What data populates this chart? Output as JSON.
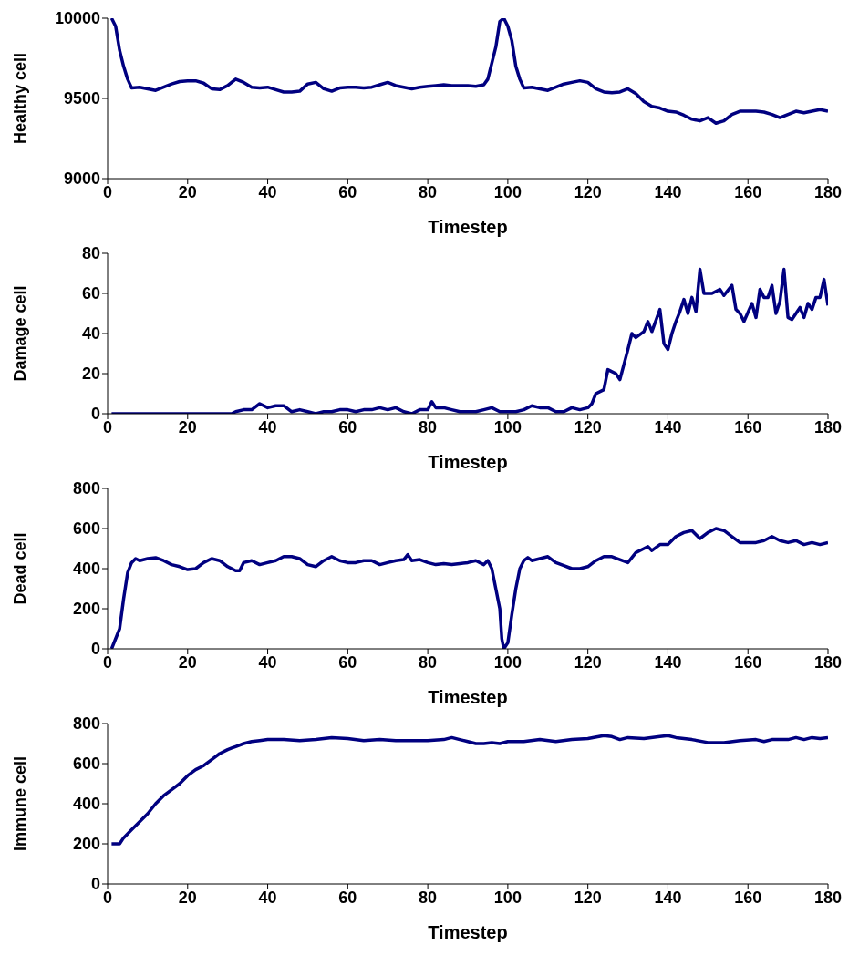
{
  "chart_data": [
    {
      "type": "line",
      "ylabel": "Healthy cell",
      "xlabel": "Timestep",
      "xlim": [
        0,
        180
      ],
      "xticks": [
        0,
        20,
        40,
        60,
        80,
        100,
        120,
        140,
        160,
        180
      ],
      "ylim": [
        9000,
        10000
      ],
      "yticks": [
        9000,
        9500,
        10000
      ],
      "x": [
        1,
        2,
        3,
        4,
        5,
        6,
        8,
        10,
        12,
        14,
        16,
        18,
        20,
        22,
        24,
        26,
        28,
        30,
        32,
        34,
        36,
        38,
        40,
        42,
        44,
        46,
        48,
        50,
        52,
        54,
        56,
        58,
        60,
        62,
        64,
        66,
        68,
        70,
        72,
        74,
        76,
        78,
        80,
        82,
        84,
        86,
        88,
        90,
        92,
        94,
        95,
        96,
        97,
        98,
        99,
        100,
        101,
        102,
        103,
        104,
        106,
        108,
        110,
        112,
        114,
        116,
        118,
        120,
        122,
        124,
        126,
        128,
        130,
        132,
        134,
        136,
        138,
        140,
        142,
        144,
        146,
        148,
        150,
        152,
        154,
        156,
        158,
        160,
        162,
        164,
        166,
        168,
        170,
        172,
        174,
        176,
        178,
        180
      ],
      "series": [
        {
          "color": "#000080",
          "values": [
            10000,
            9950,
            9800,
            9700,
            9620,
            9565,
            9570,
            9560,
            9550,
            9570,
            9590,
            9605,
            9610,
            9610,
            9595,
            9560,
            9555,
            9580,
            9620,
            9600,
            9570,
            9565,
            9570,
            9555,
            9540,
            9540,
            9545,
            9590,
            9600,
            9560,
            9545,
            9565,
            9570,
            9570,
            9565,
            9570,
            9585,
            9600,
            9580,
            9570,
            9560,
            9570,
            9575,
            9580,
            9585,
            9580,
            9580,
            9580,
            9575,
            9585,
            9620,
            9720,
            9820,
            9980,
            10000,
            9950,
            9860,
            9700,
            9620,
            9565,
            9570,
            9560,
            9550,
            9570,
            9590,
            9600,
            9610,
            9600,
            9560,
            9540,
            9535,
            9540,
            9560,
            9530,
            9480,
            9450,
            9440,
            9420,
            9415,
            9395,
            9370,
            9360,
            9380,
            9345,
            9360,
            9400,
            9420,
            9420,
            9420,
            9415,
            9400,
            9380,
            9400,
            9420,
            9410,
            9420,
            9430,
            9420
          ]
        }
      ]
    },
    {
      "type": "line",
      "ylabel": "Damage cell",
      "xlabel": "Timestep",
      "xlim": [
        0,
        180
      ],
      "xticks": [
        0,
        20,
        40,
        60,
        80,
        100,
        120,
        140,
        160,
        180
      ],
      "ylim": [
        0,
        80
      ],
      "yticks": [
        0,
        20,
        40,
        60,
        80
      ],
      "x": [
        1,
        31,
        32,
        34,
        36,
        38,
        40,
        42,
        44,
        46,
        48,
        50,
        52,
        54,
        56,
        58,
        60,
        62,
        64,
        66,
        68,
        70,
        72,
        74,
        76,
        78,
        80,
        81,
        82,
        84,
        86,
        88,
        90,
        92,
        94,
        96,
        98,
        100,
        102,
        104,
        106,
        108,
        110,
        112,
        114,
        116,
        118,
        120,
        121,
        122,
        124,
        125,
        127,
        128,
        130,
        131,
        132,
        134,
        135,
        136,
        138,
        139,
        140,
        141,
        142,
        143,
        144,
        145,
        146,
        147,
        148,
        149,
        151,
        153,
        154,
        156,
        157,
        158,
        159,
        161,
        162,
        163,
        164,
        165,
        166,
        167,
        168,
        169,
        170,
        171,
        172,
        173,
        174,
        175,
        176,
        177,
        178,
        179,
        180
      ],
      "series": [
        {
          "color": "#000080",
          "values": [
            0,
            0,
            1,
            2,
            2,
            5,
            3,
            4,
            4,
            1,
            2,
            1,
            0,
            1,
            1,
            2,
            2,
            1,
            2,
            2,
            3,
            2,
            3,
            1,
            0,
            2,
            2,
            6,
            3,
            3,
            2,
            1,
            1,
            1,
            2,
            3,
            1,
            1,
            1,
            2,
            4,
            3,
            3,
            1,
            1,
            3,
            2,
            3,
            5,
            10,
            12,
            22,
            20,
            17,
            32,
            40,
            38,
            41,
            46,
            41,
            52,
            35,
            32,
            40,
            46,
            51,
            57,
            50,
            58,
            51,
            72,
            60,
            60,
            62,
            59,
            64,
            52,
            50,
            46,
            55,
            48,
            62,
            58,
            58,
            64,
            50,
            56,
            72,
            48,
            47,
            50,
            53,
            48,
            55,
            52,
            58,
            58,
            67,
            54
          ]
        }
      ]
    },
    {
      "type": "line",
      "ylabel": "Dead cell",
      "xlabel": "Timestep",
      "xlim": [
        0,
        180
      ],
      "xticks": [
        0,
        20,
        40,
        60,
        80,
        100,
        120,
        140,
        160,
        180
      ],
      "ylim": [
        0,
        800
      ],
      "yticks": [
        0,
        200,
        400,
        600,
        800
      ],
      "x": [
        1,
        3,
        4,
        5,
        6,
        7,
        8,
        10,
        12,
        14,
        16,
        18,
        20,
        22,
        24,
        26,
        28,
        30,
        32,
        33,
        34,
        36,
        38,
        40,
        42,
        44,
        46,
        48,
        50,
        52,
        54,
        56,
        58,
        60,
        62,
        64,
        66,
        68,
        70,
        72,
        74,
        75,
        76,
        78,
        80,
        82,
        84,
        86,
        88,
        90,
        92,
        94,
        95,
        96,
        97,
        98,
        98.5,
        99,
        100,
        101,
        102,
        103,
        104,
        105,
        106,
        108,
        110,
        112,
        114,
        116,
        118,
        120,
        122,
        124,
        126,
        128,
        130,
        132,
        134,
        135,
        136,
        138,
        140,
        142,
        144,
        146,
        148,
        150,
        152,
        154,
        156,
        158,
        160,
        162,
        164,
        166,
        168,
        170,
        172,
        174,
        176,
        178,
        180
      ],
      "series": [
        {
          "color": "#000080",
          "values": [
            0,
            100,
            250,
            380,
            430,
            450,
            440,
            450,
            455,
            440,
            420,
            410,
            395,
            400,
            430,
            450,
            440,
            410,
            390,
            390,
            430,
            440,
            420,
            430,
            440,
            460,
            460,
            450,
            420,
            410,
            440,
            460,
            440,
            430,
            430,
            440,
            440,
            420,
            430,
            440,
            445,
            470,
            440,
            445,
            430,
            420,
            425,
            420,
            425,
            430,
            440,
            420,
            440,
            400,
            300,
            200,
            50,
            0,
            30,
            170,
            300,
            400,
            440,
            455,
            440,
            450,
            460,
            430,
            415,
            400,
            400,
            410,
            440,
            460,
            460,
            445,
            430,
            480,
            500,
            510,
            490,
            520,
            520,
            560,
            580,
            590,
            550,
            580,
            600,
            590,
            560,
            530,
            530,
            530,
            540,
            560,
            540,
            530,
            540,
            520,
            530,
            520,
            530
          ]
        }
      ]
    },
    {
      "type": "line",
      "ylabel": "Immune cell",
      "xlabel": "Timestep",
      "xlim": [
        0,
        180
      ],
      "xticks": [
        0,
        20,
        40,
        60,
        80,
        100,
        120,
        140,
        160,
        180
      ],
      "ylim": [
        0,
        800
      ],
      "yticks": [
        0,
        200,
        400,
        600,
        800
      ],
      "x": [
        1,
        3,
        4,
        6,
        8,
        10,
        12,
        14,
        16,
        18,
        20,
        22,
        24,
        26,
        28,
        30,
        32,
        34,
        36,
        38,
        40,
        44,
        48,
        52,
        56,
        60,
        64,
        68,
        72,
        76,
        80,
        84,
        86,
        88,
        90,
        92,
        94,
        96,
        98,
        100,
        104,
        108,
        112,
        116,
        120,
        124,
        126,
        128,
        130,
        134,
        138,
        140,
        142,
        146,
        150,
        154,
        158,
        162,
        164,
        166,
        170,
        172,
        174,
        176,
        178,
        180
      ],
      "series": [
        {
          "color": "#000080",
          "values": [
            200,
            200,
            230,
            270,
            310,
            350,
            400,
            440,
            470,
            500,
            540,
            570,
            590,
            620,
            650,
            670,
            685,
            700,
            710,
            715,
            720,
            720,
            715,
            720,
            730,
            725,
            715,
            720,
            715,
            715,
            715,
            720,
            730,
            720,
            710,
            700,
            700,
            705,
            700,
            710,
            710,
            720,
            710,
            720,
            725,
            740,
            735,
            720,
            730,
            725,
            735,
            740,
            730,
            720,
            705,
            705,
            715,
            720,
            710,
            720,
            720,
            730,
            720,
            730,
            725,
            730
          ]
        }
      ]
    }
  ]
}
